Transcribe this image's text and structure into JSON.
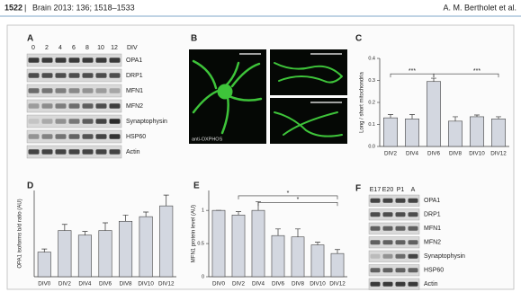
{
  "header": {
    "page": "1522",
    "journal": "Brain 2013: 136; 1518–1533",
    "authors": "A. M. Bertholet et al."
  },
  "panel_a": {
    "label": "A",
    "days": [
      "0",
      "2",
      "4",
      "6",
      "8",
      "10",
      "12"
    ],
    "unit": "DIV",
    "proteins": [
      "OPA1",
      "DRP1",
      "MFN1",
      "MFN2",
      "Synaptophysin",
      "HSP60",
      "Actin"
    ]
  },
  "panel_b": {
    "label": "B",
    "stain": "anti-OXPHOS"
  },
  "panel_f": {
    "label": "F",
    "stages": [
      "E17",
      "E20",
      "P1",
      "A"
    ],
    "proteins": [
      "OPA1",
      "DRP1",
      "MFN1",
      "MFN2",
      "Synaptophysin",
      "HSP60",
      "Actin"
    ]
  },
  "chart_data": [
    {
      "type": "bar",
      "label": "C",
      "y_label": "Long / short mitochondria",
      "categories": [
        "DIV2",
        "DIV4",
        "DIV6",
        "DIV8",
        "DIV10",
        "DIV12"
      ],
      "values": [
        0.13,
        0.125,
        0.295,
        0.115,
        0.135,
        0.125
      ],
      "errors": [
        0.015,
        0.02,
        0.015,
        0.02,
        0.008,
        0.01
      ],
      "ylim": [
        0,
        0.4
      ],
      "yticks": [
        {
          "value": 0,
          "label": "0.0"
        },
        0.1,
        0.2,
        0.3,
        0.4
      ],
      "annotations": [
        "***",
        "***"
      ],
      "color": "#d3d7e0"
    },
    {
      "type": "bar",
      "label": "D",
      "y_label": "OPA1 isoforms b/d ratio (AU)",
      "categories": [
        "DIV0",
        "DIV2",
        "DIV4",
        "DIV6",
        "DIV8",
        "DIV10",
        "DIV12"
      ],
      "values": [
        0.8,
        1.5,
        1.35,
        1.5,
        1.8,
        1.95,
        2.3
      ],
      "errors": [
        0.1,
        0.2,
        0.12,
        0.25,
        0.2,
        0.15,
        0.35
      ],
      "ylim": [
        0,
        2.8
      ],
      "color": "#d3d7e0"
    },
    {
      "type": "bar",
      "label": "E",
      "y_label": "MFN1 protein level (AU)",
      "categories": [
        "DIV0",
        "DIV2",
        "DIV4",
        "DIV6",
        "DIV8",
        "DIV10",
        "DIV12"
      ],
      "values": [
        1.0,
        0.93,
        1.0,
        0.62,
        0.6,
        0.48,
        0.35
      ],
      "errors": [
        0.0,
        0.05,
        0.13,
        0.1,
        0.12,
        0.04,
        0.06
      ],
      "ylim": [
        0,
        1.3
      ],
      "yticks": [
        0,
        0.5,
        1
      ],
      "annotations": [
        "*",
        "*"
      ],
      "color": "#d3d7e0"
    }
  ]
}
